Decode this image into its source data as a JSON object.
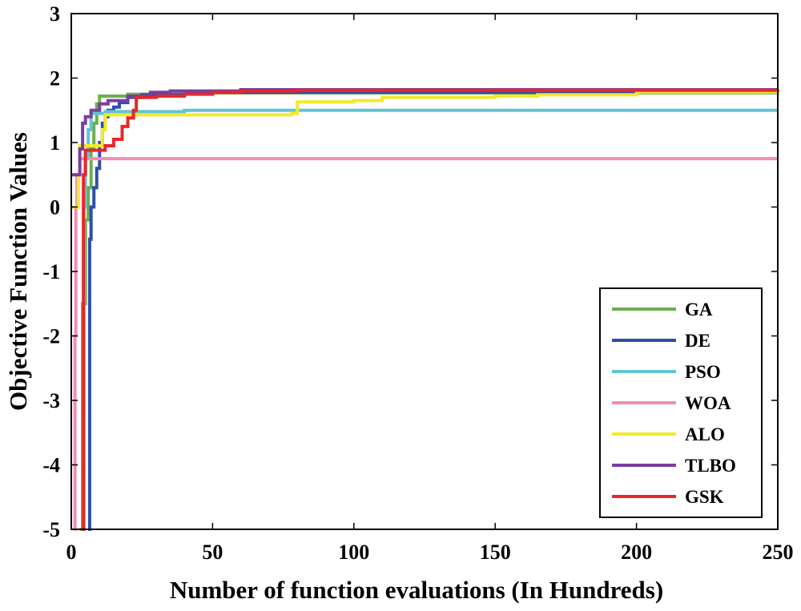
{
  "chart_data": {
    "type": "line",
    "title": "",
    "xlabel": "Number of function evaluations (In Hundreds)",
    "ylabel": "Objective Function Values",
    "xlim": [
      0,
      250
    ],
    "ylim": [
      -5,
      3
    ],
    "xticks": [
      0,
      50,
      100,
      150,
      200,
      250
    ],
    "yticks": [
      -5,
      -4,
      -3,
      -2,
      -1,
      0,
      1,
      2,
      3
    ],
    "grid": false,
    "legend_position": "bottom-right",
    "series": [
      {
        "name": "GA",
        "color": "#6ab04c",
        "points": [
          [
            3,
            -5
          ],
          [
            4,
            -1.5
          ],
          [
            5,
            -0.2
          ],
          [
            6,
            0.3
          ],
          [
            7,
            0.9
          ],
          [
            8,
            1.3
          ],
          [
            9,
            1.6
          ],
          [
            10,
            1.72
          ],
          [
            20,
            1.75
          ],
          [
            40,
            1.77
          ],
          [
            250,
            1.8
          ]
        ]
      },
      {
        "name": "DE",
        "color": "#2e4fa8",
        "points": [
          [
            6,
            -5
          ],
          [
            6.5,
            -0.5
          ],
          [
            7,
            0
          ],
          [
            8,
            0.3
          ],
          [
            9,
            0.6
          ],
          [
            10,
            1.0
          ],
          [
            11,
            1.3
          ],
          [
            12,
            1.4
          ],
          [
            13,
            1.5
          ],
          [
            15,
            1.55
          ],
          [
            17,
            1.62
          ],
          [
            20,
            1.7
          ],
          [
            25,
            1.74
          ],
          [
            40,
            1.78
          ],
          [
            250,
            1.8
          ]
        ]
      },
      {
        "name": "PSO",
        "color": "#62c4d2",
        "points": [
          [
            4,
            -5
          ],
          [
            4.5,
            0
          ],
          [
            5,
            0.8
          ],
          [
            6,
            1.2
          ],
          [
            7,
            1.45
          ],
          [
            12,
            1.48
          ],
          [
            40,
            1.5
          ],
          [
            250,
            1.5
          ]
        ]
      },
      {
        "name": "WOA",
        "color": "#f08cb8",
        "points": [
          [
            1,
            -5
          ],
          [
            1.3,
            -2
          ],
          [
            1.6,
            0
          ],
          [
            2,
            0.5
          ],
          [
            3,
            0.75
          ],
          [
            250,
            0.75
          ]
        ]
      },
      {
        "name": "ALO",
        "color": "#f2ea2e",
        "points": [
          [
            0,
            0
          ],
          [
            2,
            0
          ],
          [
            2.5,
            0.5
          ],
          [
            3,
            0.95
          ],
          [
            10,
            0.95
          ],
          [
            11,
            1.2
          ],
          [
            12,
            1.43
          ],
          [
            78,
            1.45
          ],
          [
            80,
            1.63
          ],
          [
            100,
            1.65
          ],
          [
            110,
            1.7
          ],
          [
            150,
            1.72
          ],
          [
            165,
            1.74
          ],
          [
            200,
            1.78
          ],
          [
            250,
            1.8
          ]
        ]
      },
      {
        "name": "TLBO",
        "color": "#7a3ea0",
        "points": [
          [
            0,
            0.5
          ],
          [
            2,
            0.5
          ],
          [
            3,
            0.9
          ],
          [
            4,
            1.3
          ],
          [
            5,
            1.4
          ],
          [
            7,
            1.5
          ],
          [
            10,
            1.6
          ],
          [
            13,
            1.65
          ],
          [
            20,
            1.72
          ],
          [
            28,
            1.78
          ],
          [
            35,
            1.8
          ],
          [
            60,
            1.82
          ],
          [
            250,
            1.82
          ]
        ]
      },
      {
        "name": "GSK",
        "color": "#e8262a",
        "points": [
          [
            4,
            -5
          ],
          [
            4.3,
            0.5
          ],
          [
            5,
            0.88
          ],
          [
            12,
            0.95
          ],
          [
            15,
            1.05
          ],
          [
            18,
            1.25
          ],
          [
            20,
            1.38
          ],
          [
            22,
            1.5
          ],
          [
            23,
            1.7
          ],
          [
            30,
            1.72
          ],
          [
            40,
            1.75
          ],
          [
            50,
            1.78
          ],
          [
            60,
            1.8
          ],
          [
            80,
            1.81
          ],
          [
            250,
            1.82
          ]
        ]
      }
    ]
  }
}
